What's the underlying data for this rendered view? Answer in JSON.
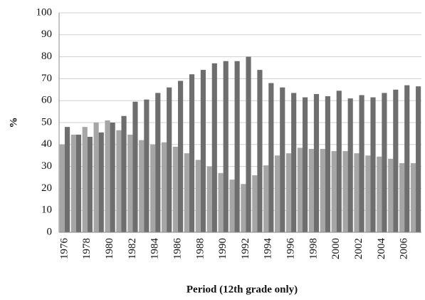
{
  "chart_data": {
    "type": "bar",
    "x_label": "Period (12th grade only)",
    "y_label": "%",
    "categories": [
      "1976",
      null,
      "1978",
      null,
      "1980",
      null,
      "1982",
      null,
      "1984",
      null,
      "1986",
      null,
      "1988",
      null,
      "1990",
      null,
      "1992",
      null,
      "1994",
      null,
      "1996",
      null,
      "1998",
      null,
      "2000",
      null,
      "2002",
      null,
      "2004",
      null,
      "2006",
      null
    ],
    "series": [
      {
        "color": "#a6a6a6",
        "values": [
          40,
          44.5,
          48,
          50,
          51,
          46.5,
          44.5,
          42,
          40,
          41,
          39,
          36,
          33,
          30,
          27,
          24,
          22,
          26,
          30.5,
          35,
          36,
          38.5,
          38,
          38,
          37,
          37,
          36,
          35,
          34.5,
          33.5,
          31.5,
          31.5
        ]
      },
      {
        "color": "#6e6e6e",
        "values": [
          48,
          44.5,
          43.5,
          45.5,
          50,
          53,
          59.5,
          60.5,
          63.5,
          66,
          69,
          72,
          74,
          77,
          78,
          78,
          80,
          74,
          68,
          66,
          63.5,
          61.5,
          63,
          62,
          64.5,
          61,
          62.5,
          61.5,
          63.5,
          65,
          67,
          66.5
        ]
      }
    ],
    "ylim": [
      0,
      100
    ],
    "yticks": [
      0,
      10,
      20,
      30,
      40,
      50,
      60,
      70,
      80,
      90,
      100
    ],
    "grid": true
  }
}
